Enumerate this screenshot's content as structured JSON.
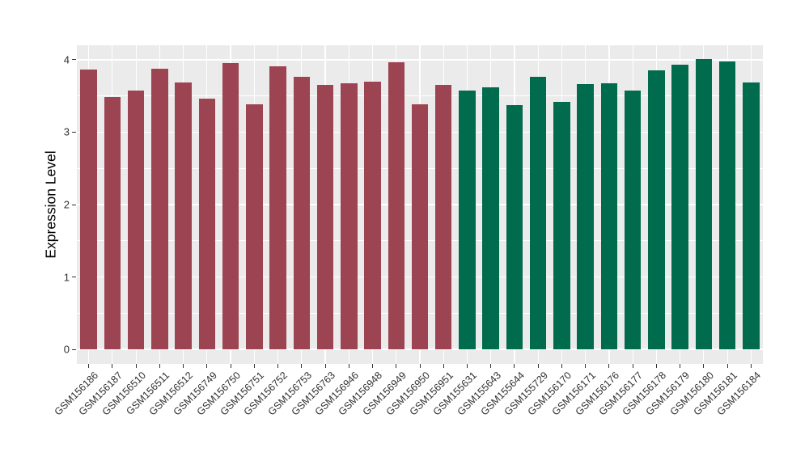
{
  "window": {
    "background": "#ffffff"
  },
  "chart_data": {
    "type": "bar",
    "title": "",
    "xlabel": "",
    "ylabel": "Expression Level",
    "ylim": [
      0,
      4
    ],
    "y_ticks": [
      0,
      1,
      2,
      3,
      4
    ],
    "grid": "major and minor horizontal white lines, vertical white line at each category center",
    "legend_position": "none",
    "panel_background": "#ebebeb",
    "grid_color": "#ffffff",
    "axis_text_color": "#303030",
    "tick_mark_color": "#333333",
    "x_tick_rotation_deg": 45,
    "categories": [
      "GSM156186",
      "GSM156187",
      "GSM156510",
      "GSM156511",
      "GSM156512",
      "GSM156749",
      "GSM156750",
      "GSM156751",
      "GSM156752",
      "GSM156753",
      "GSM156763",
      "GSM156946",
      "GSM156948",
      "GSM156949",
      "GSM156950",
      "GSM156951",
      "GSM155631",
      "GSM155643",
      "GSM155644",
      "GSM155729",
      "GSM156170",
      "GSM156171",
      "GSM156176",
      "GSM156177",
      "GSM156178",
      "GSM156179",
      "GSM156180",
      "GSM156181",
      "GSM156184"
    ],
    "values": [
      3.87,
      3.49,
      3.58,
      3.88,
      3.69,
      3.46,
      3.95,
      3.38,
      3.91,
      3.77,
      3.65,
      3.67,
      3.7,
      3.97,
      3.38,
      3.65,
      3.58,
      3.62,
      3.37,
      3.76,
      3.42,
      3.66,
      3.68,
      3.58,
      3.85,
      3.93,
      4.01,
      3.98,
      3.69
    ],
    "bar_groups": [
      {
        "color": "#9c4452",
        "start_index": 0,
        "end_index": 15
      },
      {
        "color": "#006b4d",
        "start_index": 16,
        "end_index": 28
      }
    ]
  }
}
